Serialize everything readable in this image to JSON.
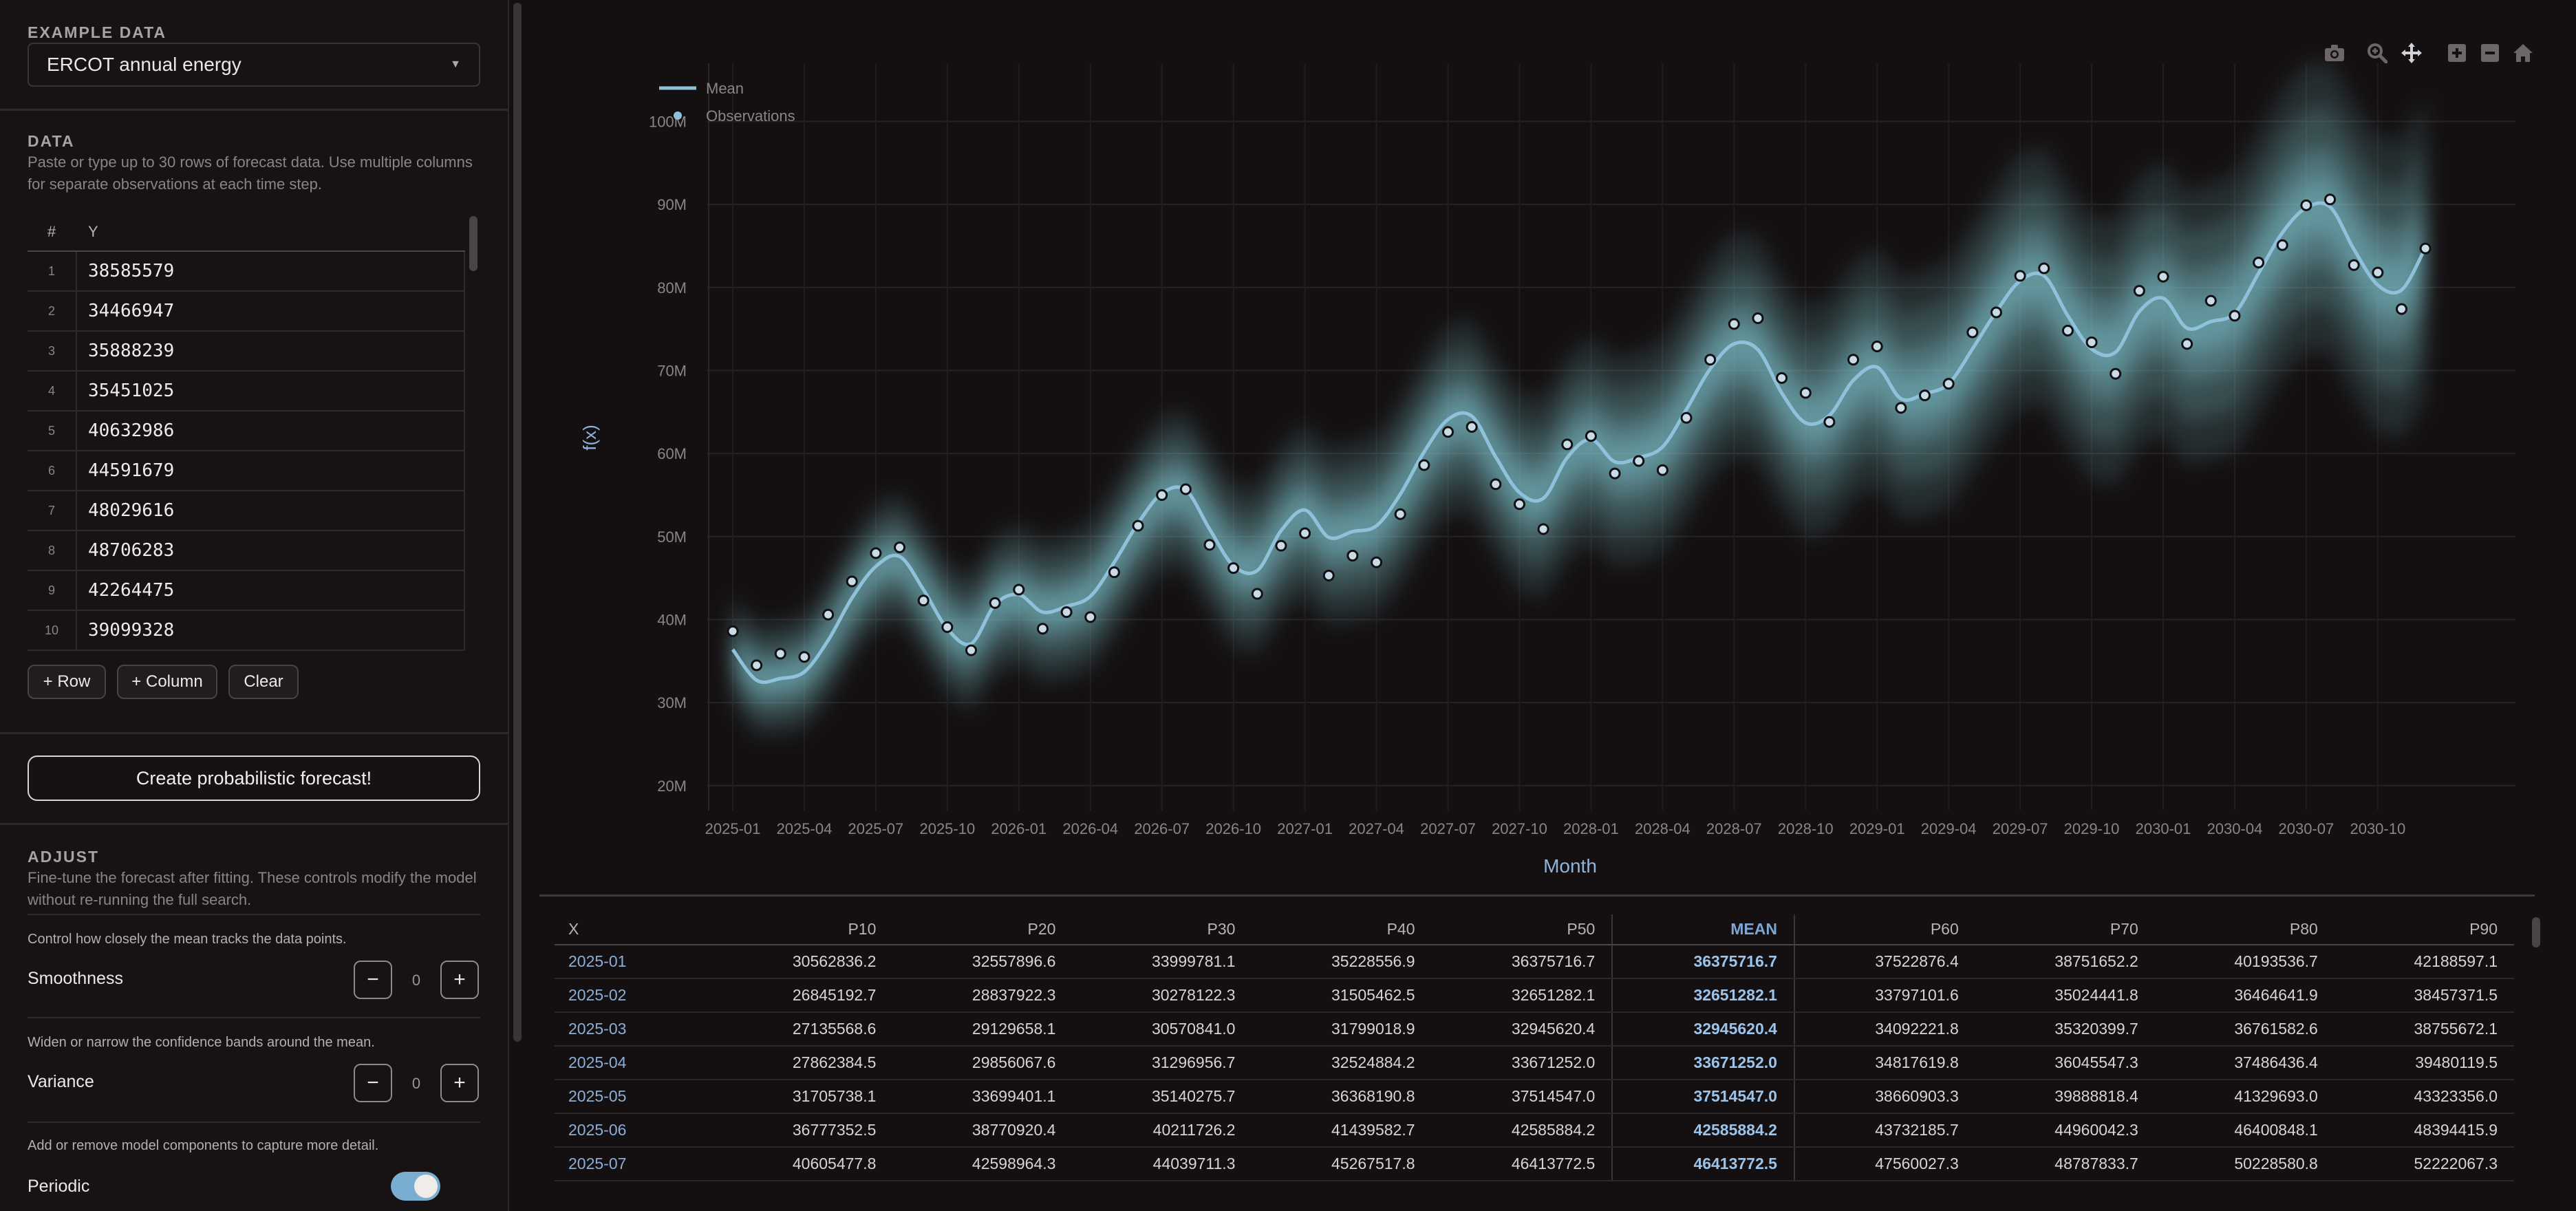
{
  "sidebar": {
    "example_title": "EXAMPLE DATA",
    "example_selected": "ERCOT annual energy",
    "data_title": "DATA",
    "data_desc_1": "Paste or type up to 30 rows of forecast data. Use multiple columns",
    "data_desc_2": "for separate observations at each time step.",
    "grid_headers": {
      "index": "#",
      "y": "Y"
    },
    "rows": [
      {
        "i": "1",
        "v": "38585579"
      },
      {
        "i": "2",
        "v": "34466947"
      },
      {
        "i": "3",
        "v": "35888239"
      },
      {
        "i": "4",
        "v": "35451025"
      },
      {
        "i": "5",
        "v": "40632986"
      },
      {
        "i": "6",
        "v": "44591679"
      },
      {
        "i": "7",
        "v": "48029616"
      },
      {
        "i": "8",
        "v": "48706283"
      },
      {
        "i": "9",
        "v": "42264475"
      },
      {
        "i": "10",
        "v": "39099328"
      }
    ],
    "add_row": "+ Row",
    "add_column": "+ Column",
    "clear": "Clear",
    "create_forecast": "Create probabilistic forecast!",
    "adjust_title": "ADJUST",
    "adjust_desc_1": "Fine-tune the forecast after fitting. These controls modify the model",
    "adjust_desc_2": "without re-running the full search.",
    "smoothness_hint": "Control how closely the mean tracks the data points.",
    "smoothness_label": "Smoothness",
    "smoothness_value": "0",
    "variance_hint": "Widen or narrow the confidence bands around the mean.",
    "variance_label": "Variance",
    "variance_value": "0",
    "components_hint": "Add or remove model components to capture more detail.",
    "periodic_label": "Periodic",
    "periodic_on": true
  },
  "chart_data": {
    "type": "line",
    "xlabel": "Month",
    "ylabel": "f(x)",
    "ylim": [
      17000000,
      107000000
    ],
    "x_tick_labels": [
      "2025-01",
      "2025-04",
      "2025-07",
      "2025-10",
      "2026-01",
      "2026-04",
      "2026-07",
      "2026-10",
      "2027-01",
      "2027-04",
      "2027-07",
      "2027-10",
      "2028-01",
      "2028-04",
      "2028-07",
      "2028-10",
      "2029-01",
      "2029-04",
      "2029-07",
      "2029-10",
      "2030-01",
      "2030-04",
      "2030-07",
      "2030-10"
    ],
    "y_ticks": [
      20000000,
      30000000,
      40000000,
      50000000,
      60000000,
      70000000,
      80000000,
      90000000,
      100000000
    ],
    "y_tick_labels": [
      "20M",
      "30M",
      "40M",
      "50M",
      "60M",
      "70M",
      "80M",
      "90M",
      "100M"
    ],
    "legend": [
      {
        "name": "Mean",
        "marker": "line"
      },
      {
        "name": "Observations",
        "marker": "dot"
      }
    ],
    "legend_position": "top-left",
    "grid": true,
    "colors": {
      "mean": "#8fc1da",
      "band": "#7fc5cf",
      "obs_fill": "#c9dbe6",
      "obs_edge": "#121012"
    },
    "observations": [
      38.6,
      34.5,
      35.9,
      35.5,
      40.6,
      44.6,
      48.0,
      48.7,
      42.3,
      39.1,
      36.3,
      42.0,
      43.6,
      38.9,
      40.9,
      40.3,
      45.7,
      51.3,
      55.0,
      55.7,
      49.0,
      46.2,
      43.1,
      48.9,
      50.4,
      45.3,
      47.7,
      46.9,
      52.7,
      58.6,
      62.6,
      63.2,
      56.3,
      53.9,
      50.9,
      61.1,
      62.1,
      57.6,
      59.1,
      58.0,
      64.3,
      71.3,
      75.6,
      76.3,
      69.1,
      67.3,
      63.8,
      71.3,
      72.9,
      65.5,
      67.0,
      68.4,
      74.6,
      77.0,
      81.4,
      82.3,
      74.8,
      73.4,
      69.6,
      79.6,
      81.3,
      73.2,
      78.4,
      76.6,
      83.0,
      85.1,
      89.9,
      90.6,
      82.7,
      81.8,
      77.4,
      84.7
    ],
    "mean": [
      36.4,
      32.7,
      32.9,
      33.7,
      37.5,
      42.6,
      46.4,
      47.6,
      43.6,
      38.9,
      37.1,
      41.8,
      43.0,
      40.9,
      41.6,
      42.8,
      46.9,
      51.6,
      55.2,
      55.6,
      50.9,
      46.5,
      45.9,
      50.7,
      53.2,
      49.9,
      50.6,
      51.3,
      55.1,
      60.2,
      64.1,
      64.5,
      59.6,
      55.3,
      54.6,
      59.5,
      61.7,
      59.0,
      59.5,
      60.8,
      65.3,
      70.2,
      73.2,
      72.5,
      67.3,
      63.7,
      64.6,
      68.8,
      70.4,
      66.6,
      67.2,
      68.4,
      72.6,
      77.1,
      80.8,
      81.4,
      76.6,
      72.6,
      72.2,
      77.1,
      78.7,
      75.1,
      75.9,
      76.9,
      81.7,
      86.6,
      89.6,
      89.7,
      84.6,
      80.3,
      79.7,
      84.8
    ],
    "units_note": "values in millions"
  },
  "table": {
    "headers": [
      "X",
      "P10",
      "P20",
      "P30",
      "P40",
      "P50",
      "MEAN",
      "P60",
      "P70",
      "P80",
      "P90"
    ],
    "rows": [
      [
        "2025-01",
        "30562836.2",
        "32557896.6",
        "33999781.1",
        "35228556.9",
        "36375716.7",
        "36375716.7",
        "37522876.4",
        "38751652.2",
        "40193536.7",
        "42188597.1"
      ],
      [
        "2025-02",
        "26845192.7",
        "28837922.3",
        "30278122.3",
        "31505462.5",
        "32651282.1",
        "32651282.1",
        "33797101.6",
        "35024441.8",
        "36464641.9",
        "38457371.5"
      ],
      [
        "2025-03",
        "27135568.6",
        "29129658.1",
        "30570841.0",
        "31799018.9",
        "32945620.4",
        "32945620.4",
        "34092221.8",
        "35320399.7",
        "36761582.6",
        "38755672.1"
      ],
      [
        "2025-04",
        "27862384.5",
        "29856067.6",
        "31296956.7",
        "32524884.2",
        "33671252.0",
        "33671252.0",
        "34817619.8",
        "36045547.3",
        "37486436.4",
        "39480119.5"
      ],
      [
        "2025-05",
        "31705738.1",
        "33699401.1",
        "35140275.7",
        "36368190.8",
        "37514547.0",
        "37514547.0",
        "38660903.3",
        "39888818.4",
        "41329693.0",
        "43323356.0"
      ],
      [
        "2025-06",
        "36777352.5",
        "38770920.4",
        "40211726.2",
        "41439582.7",
        "42585884.2",
        "42585884.2",
        "43732185.7",
        "44960042.3",
        "46400848.1",
        "48394415.9"
      ],
      [
        "2025-07",
        "40605477.8",
        "42598964.3",
        "44039711.3",
        "45267517.8",
        "46413772.5",
        "46413772.5",
        "47560027.3",
        "48787833.7",
        "50228580.8",
        "52222067.3"
      ]
    ]
  }
}
